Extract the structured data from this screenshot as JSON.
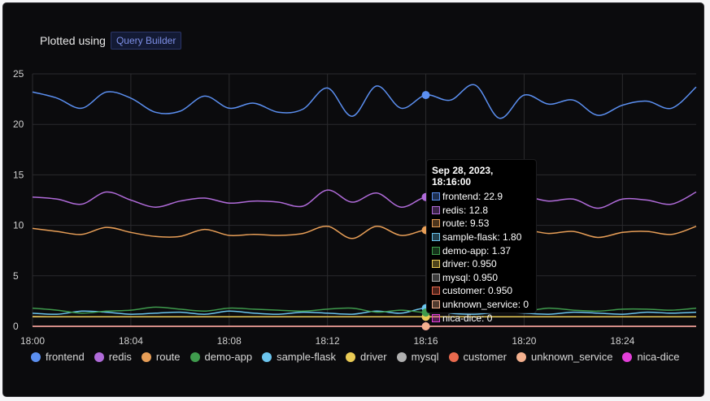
{
  "header": {
    "plotted_label": "Plotted using",
    "builder_label": "Query Builder"
  },
  "chart_data": {
    "type": "line",
    "x_ticks": [
      "18:00",
      "18:04",
      "18:08",
      "18:12",
      "18:16",
      "18:20",
      "18:24"
    ],
    "x_minutes_range": [
      0,
      27
    ],
    "ylim": [
      0,
      25
    ],
    "y_ticks": [
      "0",
      "5",
      "10",
      "15",
      "20",
      "25"
    ],
    "grid": true,
    "legend_position": "bottom",
    "series": [
      {
        "name": "frontend",
        "color": "#5b8ff0",
        "values": [
          23.2,
          22.6,
          21.6,
          23.2,
          22.6,
          21.2,
          21.3,
          22.8,
          21.6,
          22.1,
          21.2,
          21.5,
          23.6,
          20.8,
          23.8,
          21.6,
          22.9,
          22.4,
          23.9,
          20.6,
          22.9,
          22.0,
          22.4,
          20.9,
          21.9,
          22.3,
          21.6,
          23.7
        ]
      },
      {
        "name": "redis",
        "color": "#b06bd9",
        "values": [
          12.8,
          12.6,
          12.1,
          13.3,
          12.5,
          11.8,
          12.4,
          12.7,
          12.2,
          12.4,
          12.3,
          11.9,
          13.5,
          12.3,
          13.2,
          11.8,
          12.8,
          12.6,
          12.9,
          12.1,
          12.8,
          12.4,
          12.6,
          11.7,
          12.6,
          12.5,
          12.1,
          13.3
        ]
      },
      {
        "name": "route",
        "color": "#e79e57",
        "values": [
          9.7,
          9.4,
          9.1,
          9.8,
          9.3,
          8.9,
          8.9,
          9.6,
          9.0,
          9.1,
          9.0,
          9.2,
          9.9,
          8.7,
          9.9,
          9.0,
          9.53,
          9.4,
          9.8,
          8.9,
          9.5,
          9.2,
          9.4,
          8.8,
          9.3,
          9.4,
          9.1,
          9.9
        ]
      },
      {
        "name": "demo-app",
        "color": "#3f9b4d",
        "values": [
          1.8,
          1.6,
          1.3,
          1.5,
          1.6,
          1.9,
          1.7,
          1.5,
          1.8,
          1.7,
          1.6,
          1.5,
          1.7,
          1.8,
          1.4,
          1.6,
          1.37,
          1.5,
          1.8,
          1.7,
          1.5,
          1.8,
          1.6,
          1.5,
          1.7,
          1.7,
          1.6,
          1.8
        ]
      },
      {
        "name": "sample-flask",
        "color": "#6cc5ee",
        "values": [
          1.3,
          1.2,
          1.5,
          1.4,
          1.2,
          1.3,
          1.4,
          1.2,
          1.5,
          1.3,
          1.2,
          1.4,
          1.3,
          1.2,
          1.5,
          1.3,
          1.8,
          1.3,
          1.2,
          1.4,
          1.3,
          1.2,
          1.4,
          1.3,
          1.2,
          1.4,
          1.3,
          1.4
        ]
      },
      {
        "name": "driver",
        "color": "#eacb55",
        "values": [
          0.95,
          0.95,
          0.95,
          0.95,
          0.95,
          0.95,
          0.95,
          0.95,
          0.95,
          0.95,
          0.95,
          0.95,
          0.95,
          0.95,
          0.95,
          0.95,
          0.95,
          0.95,
          0.95,
          0.95,
          0.95,
          0.95,
          0.95,
          0.95,
          0.95,
          0.95,
          0.95,
          0.95
        ]
      },
      {
        "name": "mysql",
        "color": "#b0b0b0",
        "values": [
          0.95,
          0.95,
          0.95,
          0.95,
          0.95,
          0.95,
          0.95,
          0.95,
          0.95,
          0.95,
          0.95,
          0.95,
          0.95,
          0.95,
          0.95,
          0.95,
          0.95,
          0.95,
          0.95,
          0.95,
          0.95,
          0.95,
          0.95,
          0.95,
          0.95,
          0.95,
          0.95,
          0.95
        ]
      },
      {
        "name": "customer",
        "color": "#e96a4e",
        "values": [
          0.95,
          0.95,
          0.95,
          0.95,
          0.95,
          0.95,
          0.95,
          0.95,
          0.95,
          0.95,
          0.95,
          0.95,
          0.95,
          0.95,
          0.95,
          0.95,
          0.95,
          0.95,
          0.95,
          0.95,
          0.95,
          0.95,
          0.95,
          0.95,
          0.95,
          0.95,
          0.95,
          0.95
        ]
      },
      {
        "name": "unknown_service",
        "color": "#f4b08e",
        "values": [
          0,
          0,
          0,
          0,
          0,
          0,
          0,
          0,
          0,
          0,
          0,
          0,
          0,
          0,
          0,
          0,
          0,
          0,
          0,
          0,
          0,
          0,
          0,
          0,
          0,
          0,
          0,
          0
        ]
      },
      {
        "name": "nica-dice",
        "color": "#e33fd9",
        "values": [
          0,
          0,
          0,
          0,
          0,
          0,
          0,
          0,
          0,
          0,
          0,
          0,
          0,
          0,
          0,
          0,
          0,
          0,
          0,
          0,
          0,
          0,
          0,
          0,
          0,
          0,
          0,
          0
        ]
      }
    ],
    "tooltip": {
      "title": "Sep 28, 2023, 18:16:00",
      "rows": [
        {
          "label": "frontend: 22.9",
          "color": "#5b8ff0"
        },
        {
          "label": "redis: 12.8",
          "color": "#b06bd9"
        },
        {
          "label": "route: 9.53",
          "color": "#e79e57"
        },
        {
          "label": "sample-flask: 1.80",
          "color": "#6cc5ee"
        },
        {
          "label": "demo-app: 1.37",
          "color": "#3f9b4d"
        },
        {
          "label": "driver: 0.950",
          "color": "#eacb55"
        },
        {
          "label": "mysql: 0.950",
          "color": "#b0b0b0"
        },
        {
          "label": "customer: 0.950",
          "color": "#e96a4e"
        },
        {
          "label": "unknown_service: 0",
          "color": "#f4b08e"
        },
        {
          "label": "nica-dice: 0",
          "color": "#e33fd9"
        }
      ]
    }
  }
}
